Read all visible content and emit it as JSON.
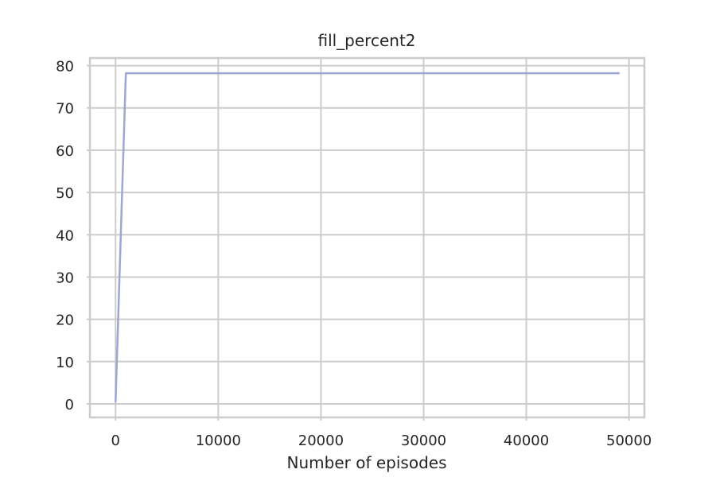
{
  "chart_data": {
    "type": "line",
    "title": "fill_percent2",
    "xlabel": "Number of episodes",
    "ylabel": "",
    "xlim": [
      -2500,
      51500
    ],
    "ylim": [
      -3.2,
      81.8
    ],
    "x_ticks": [
      0,
      10000,
      20000,
      30000,
      40000,
      50000
    ],
    "y_ticks": [
      0,
      10,
      20,
      30,
      40,
      50,
      60,
      70,
      80
    ],
    "grid": true,
    "legend": "none",
    "series": [
      {
        "color": "#9ea6d3",
        "x": [
          0,
          1000,
          2000,
          5000,
          10000,
          15000,
          20000,
          25000,
          30000,
          35000,
          40000,
          45000,
          49000
        ],
        "y": [
          0.5,
          78.2,
          78.2,
          78.2,
          78.2,
          78.2,
          78.2,
          78.2,
          78.2,
          78.2,
          78.2,
          78.2,
          78.2
        ]
      }
    ]
  }
}
